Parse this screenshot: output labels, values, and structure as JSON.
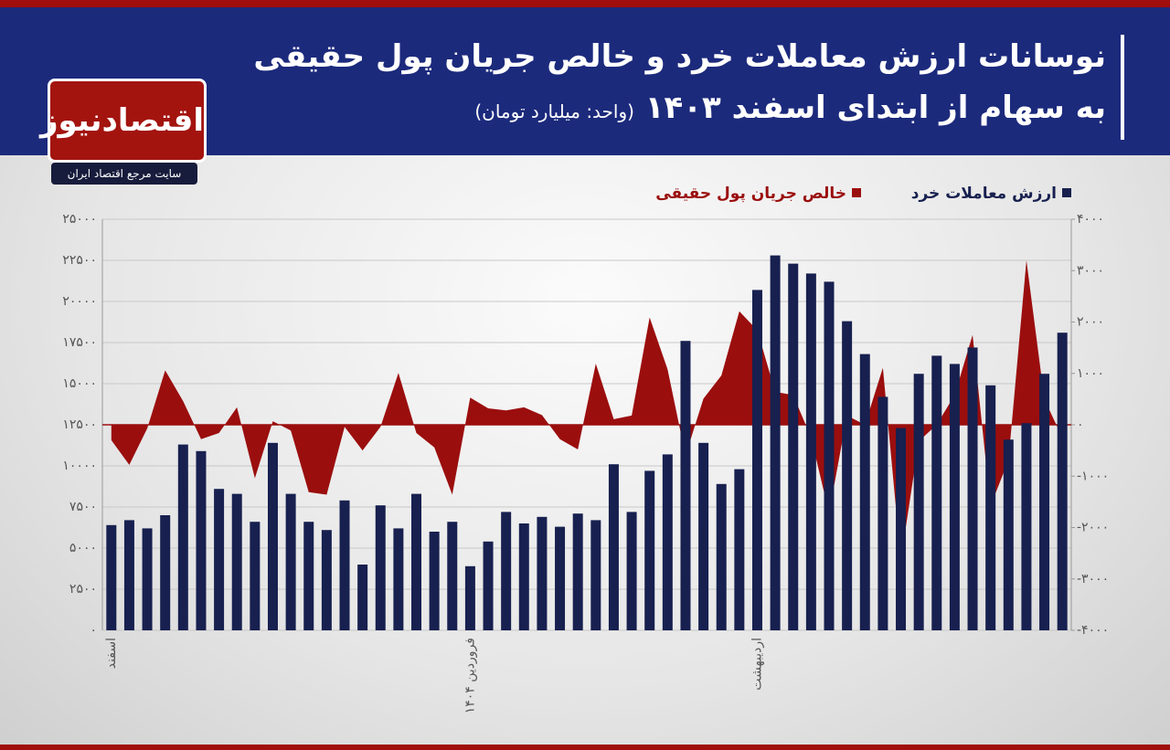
{
  "chart_data": {
    "type": "bar",
    "title": "نوسانات ارزش معاملات خرد و خالص جریان پول حقیقی",
    "subtitle": "به سهام از ابتدای اسفند ۱۴۰۳",
    "unit": "(واحد: میلیارد تومان)",
    "brand": "اقتصادنیوز",
    "tagline": "سایت مرجع اقتصاد ایران",
    "categories": [
      "اسفند",
      null,
      null,
      null,
      null,
      null,
      null,
      null,
      null,
      null,
      null,
      null,
      null,
      null,
      null,
      null,
      null,
      null,
      null,
      null,
      "فروردین ۱۴۰۴",
      null,
      null,
      null,
      null,
      null,
      null,
      null,
      null,
      null,
      null,
      null,
      null,
      null,
      null,
      null,
      "اردیبهشت",
      null,
      null,
      null,
      null,
      null,
      null,
      null,
      null,
      null,
      null,
      null,
      null,
      null,
      null,
      null,
      null,
      null
    ],
    "series": [
      {
        "name": "ارزش معاملات خرد",
        "type": "bar",
        "color": "#17204f",
        "values": [
          6400,
          6700,
          6200,
          7000,
          11300,
          10900,
          8600,
          8300,
          6600,
          11400,
          8300,
          6600,
          6100,
          7900,
          4000,
          7600,
          6200,
          8300,
          6000,
          6600,
          3900,
          5400,
          7200,
          6500,
          6900,
          6300,
          7100,
          6700,
          10100,
          7200,
          9700,
          10700,
          17600,
          11400,
          8900,
          9800,
          20700,
          22800,
          22300,
          21700,
          21200,
          18800,
          16800,
          14200,
          12300,
          15600,
          16700,
          16200,
          17200,
          14900,
          11600,
          12600,
          15600,
          18100
        ]
      },
      {
        "name": "خالص جریان پول حقیقی",
        "type": "area",
        "color": "#9b0e0e",
        "axis": "y2",
        "values": [
          -300,
          -780,
          -70,
          1060,
          460,
          -280,
          -160,
          340,
          -1040,
          70,
          -110,
          -1310,
          -1360,
          -40,
          -500,
          -40,
          1010,
          -160,
          -440,
          -1360,
          530,
          320,
          280,
          340,
          190,
          -280,
          -480,
          1190,
          110,
          180,
          2090,
          1080,
          -600,
          510,
          960,
          2210,
          1840,
          640,
          580,
          -250,
          -1720,
          180,
          0,
          1110,
          -2640,
          -320,
          0,
          580,
          1750,
          -1580,
          -690,
          3200,
          500,
          -250
        ]
      }
    ],
    "ylim": [
      0,
      25000
    ],
    "yticks": [
      {
        "value": 0,
        "label": "۰"
      },
      {
        "value": 2500,
        "label": "۲۵۰۰"
      },
      {
        "value": 5000,
        "label": "۵۰۰۰"
      },
      {
        "value": 7500,
        "label": "۷۵۰۰"
      },
      {
        "value": 10000,
        "label": "۱۰۰۰۰"
      },
      {
        "value": 12500,
        "label": "۱۲۵۰۰"
      },
      {
        "value": 15000,
        "label": "۱۵۰۰۰"
      },
      {
        "value": 17500,
        "label": "۱۷۵۰۰"
      },
      {
        "value": 20000,
        "label": "۲۰۰۰۰"
      },
      {
        "value": 22500,
        "label": "۲۲۵۰۰"
      },
      {
        "value": 25000,
        "label": "۲۵۰۰۰"
      }
    ],
    "y2lim": [
      -4000,
      4000
    ],
    "y2ticks": [
      {
        "value": -4000,
        "label": "-۴۰۰۰"
      },
      {
        "value": -3000,
        "label": "-۳۰۰۰"
      },
      {
        "value": -2000,
        "label": "-۲۰۰۰"
      },
      {
        "value": -1000,
        "label": "-۱۰۰۰"
      },
      {
        "value": 0,
        "label": "۰"
      },
      {
        "value": 1000,
        "label": "۱۰۰۰"
      },
      {
        "value": 2000,
        "label": "۲۰۰۰"
      },
      {
        "value": 3000,
        "label": "۳۰۰۰"
      },
      {
        "value": 4000,
        "label": "۴۰۰۰"
      }
    ],
    "grid": true
  }
}
